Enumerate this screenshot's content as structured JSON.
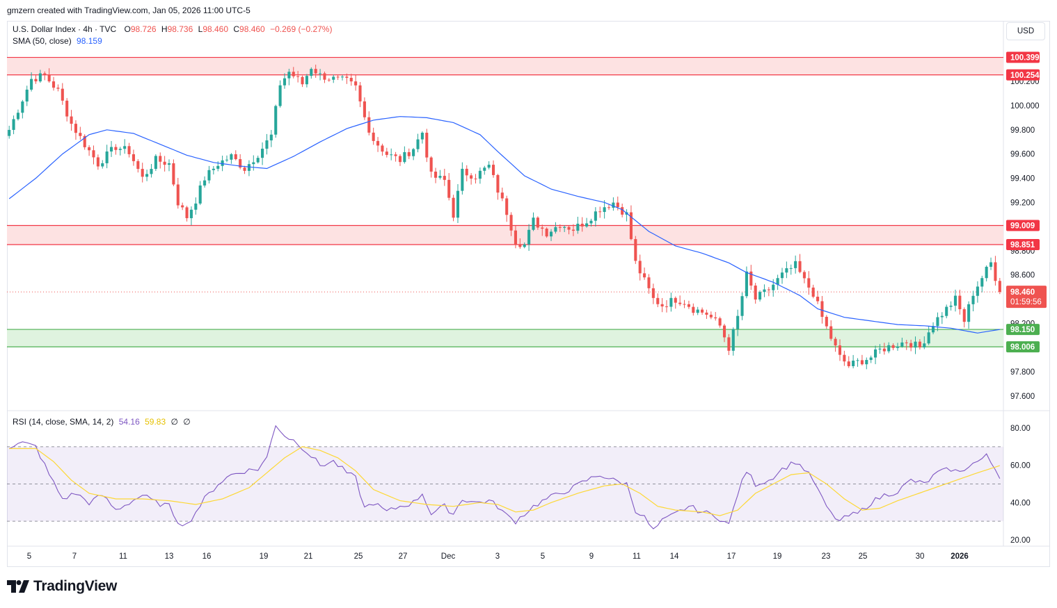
{
  "credit": "gmzern created with TradingView.com, Jan 05, 2026 11:00 UTC-5",
  "brand": {
    "name": "TradingView",
    "logo_icon": "tradingview-logo-icon"
  },
  "currency": "USD",
  "legend": {
    "symbol": "U.S. Dollar Index · 4h · TVC",
    "o_label": "O",
    "o": "98.726",
    "h_label": "H",
    "h": "98.736",
    "l_label": "L",
    "l": "98.460",
    "c_label": "C",
    "c": "98.460",
    "change": "−0.269 (−0.27%)",
    "sma_label": "SMA (50, close)",
    "sma_value": "98.159",
    "rsi_label": "RSI (14, close, SMA, 14, 2)",
    "rsi_value": "54.16",
    "rsi_ma_value": "59.83",
    "rsi_extra1": "∅",
    "rsi_extra2": "∅"
  },
  "colors": {
    "up": "#26a69a",
    "down": "#ef5350",
    "sma": "#2962ff",
    "rsi": "#7e57c2",
    "rsi_ma": "#fdd835",
    "resistance_fill": "#fde2e2",
    "resistance_line": "#f23645",
    "support_fill": "#dff3df",
    "support_line": "#4caf50"
  },
  "chart_data": [
    {
      "type": "candlestick",
      "title": "U.S. Dollar Index · 4h · TVC",
      "ylim": [
        97.5,
        100.45
      ],
      "y_ticks": [
        "100.200",
        "100.000",
        "99.800",
        "99.600",
        "99.400",
        "99.200",
        "98.800",
        "98.600",
        "98.200",
        "97.800",
        "97.600"
      ],
      "x_ticks": [
        "5",
        "7",
        "11",
        "13",
        "16",
        "19",
        "21",
        "25",
        "27",
        "Dec",
        "3",
        "5",
        "9",
        "11",
        "14",
        "17",
        "19",
        "23",
        "25",
        "30",
        "2026"
      ],
      "zones": [
        {
          "kind": "resistance",
          "top": 100.399,
          "bottom": 100.254,
          "top_label": "100.399",
          "bottom_label": "100.254"
        },
        {
          "kind": "resistance",
          "top": 99.009,
          "bottom": 98.851,
          "top_label": "99.009",
          "bottom_label": "98.851"
        },
        {
          "kind": "support",
          "top": 98.15,
          "bottom": 98.006,
          "top_label": "98.150",
          "bottom_label": "98.006"
        }
      ],
      "last_price": 98.46,
      "last_price_label": "98.460",
      "countdown": "01:59:56",
      "path_anchors": [
        [
          0,
          99.8
        ],
        [
          5,
          100.22
        ],
        [
          8,
          100.25
        ],
        [
          11,
          100.12
        ],
        [
          14,
          99.85
        ],
        [
          17,
          99.68
        ],
        [
          20,
          99.52
        ],
        [
          24,
          99.66
        ],
        [
          27,
          99.62
        ],
        [
          30,
          99.4
        ],
        [
          33,
          99.55
        ],
        [
          36,
          99.52
        ],
        [
          38,
          99.2
        ],
        [
          40,
          99.08
        ],
        [
          42,
          99.22
        ],
        [
          44,
          99.4
        ],
        [
          47,
          99.52
        ],
        [
          50,
          99.58
        ],
        [
          53,
          99.48
        ],
        [
          56,
          99.6
        ],
        [
          59,
          99.75
        ],
        [
          61,
          100.18
        ],
        [
          63,
          100.28
        ],
        [
          66,
          100.18
        ],
        [
          68,
          100.32
        ],
        [
          70,
          100.25
        ],
        [
          73,
          100.22
        ],
        [
          76,
          100.2
        ],
        [
          78,
          100.15
        ],
        [
          80,
          99.9
        ],
        [
          82,
          99.72
        ],
        [
          85,
          99.6
        ],
        [
          88,
          99.55
        ],
        [
          91,
          99.65
        ],
        [
          93,
          99.78
        ],
        [
          95,
          99.42
        ],
        [
          98,
          99.38
        ],
        [
          100,
          99.1
        ],
        [
          102,
          99.45
        ],
        [
          105,
          99.42
        ],
        [
          108,
          99.5
        ],
        [
          110,
          99.3
        ],
        [
          112,
          99.12
        ],
        [
          114,
          98.88
        ],
        [
          116,
          98.85
        ],
        [
          118,
          99.05
        ],
        [
          121,
          98.95
        ],
        [
          124,
          99.02
        ],
        [
          127,
          98.98
        ],
        [
          130,
          99.05
        ],
        [
          133,
          99.15
        ],
        [
          136,
          99.2
        ],
        [
          139,
          99.1
        ],
        [
          141,
          98.7
        ],
        [
          143,
          98.55
        ],
        [
          145,
          98.4
        ],
        [
          147,
          98.35
        ],
        [
          150,
          98.4
        ],
        [
          152,
          98.38
        ],
        [
          154,
          98.32
        ],
        [
          157,
          98.28
        ],
        [
          160,
          98.18
        ],
        [
          162,
          98.0
        ],
        [
          164,
          98.25
        ],
        [
          166,
          98.6
        ],
        [
          168,
          98.4
        ],
        [
          171,
          98.48
        ],
        [
          174,
          98.6
        ],
        [
          177,
          98.68
        ],
        [
          179,
          98.55
        ],
        [
          181,
          98.45
        ],
        [
          183,
          98.25
        ],
        [
          185,
          98.08
        ],
        [
          187,
          97.92
        ],
        [
          189,
          97.85
        ],
        [
          191,
          97.88
        ],
        [
          194,
          97.92
        ],
        [
          196,
          97.98
        ],
        [
          199,
          98.02
        ],
        [
          202,
          98.05
        ],
        [
          205,
          98.0
        ],
        [
          208,
          98.2
        ],
        [
          211,
          98.32
        ],
        [
          213,
          98.4
        ],
        [
          215,
          98.22
        ],
        [
          217,
          98.45
        ],
        [
          219,
          98.58
        ],
        [
          221,
          98.7
        ],
        [
          223,
          98.46
        ]
      ],
      "sma_anchors": [
        [
          0,
          99.23
        ],
        [
          6,
          99.4
        ],
        [
          12,
          99.6
        ],
        [
          18,
          99.76
        ],
        [
          22,
          99.8
        ],
        [
          28,
          99.77
        ],
        [
          34,
          99.68
        ],
        [
          40,
          99.59
        ],
        [
          46,
          99.53
        ],
        [
          52,
          99.5
        ],
        [
          58,
          99.48
        ],
        [
          64,
          99.58
        ],
        [
          70,
          99.7
        ],
        [
          76,
          99.81
        ],
        [
          82,
          99.88
        ],
        [
          88,
          99.91
        ],
        [
          94,
          99.9
        ],
        [
          100,
          99.86
        ],
        [
          106,
          99.76
        ],
        [
          110,
          99.62
        ],
        [
          116,
          99.42
        ],
        [
          122,
          99.31
        ],
        [
          128,
          99.25
        ],
        [
          134,
          99.2
        ],
        [
          138,
          99.14
        ],
        [
          144,
          98.96
        ],
        [
          150,
          98.84
        ],
        [
          156,
          98.78
        ],
        [
          162,
          98.7
        ],
        [
          166,
          98.62
        ],
        [
          172,
          98.54
        ],
        [
          178,
          98.43
        ],
        [
          182,
          98.32
        ],
        [
          188,
          98.25
        ],
        [
          194,
          98.22
        ],
        [
          200,
          98.19
        ],
        [
          206,
          98.18
        ],
        [
          212,
          98.16
        ],
        [
          218,
          98.12
        ],
        [
          223,
          98.15
        ]
      ]
    },
    {
      "type": "line",
      "title": "RSI (14, close, SMA, 14, 2)",
      "ylim": [
        15,
        88
      ],
      "y_ticks": [
        "80.00",
        "60.00",
        "40.00",
        "20.00"
      ],
      "band": [
        30,
        70
      ],
      "middle": 50,
      "series": [
        {
          "name": "RSI",
          "color": "#7e57c2",
          "anchors": [
            [
              0,
              70
            ],
            [
              3,
              72
            ],
            [
              6,
              70
            ],
            [
              9,
              55
            ],
            [
              12,
              42
            ],
            [
              15,
              45
            ],
            [
              18,
              40
            ],
            [
              21,
              44
            ],
            [
              24,
              36
            ],
            [
              27,
              40
            ],
            [
              30,
              44
            ],
            [
              33,
              40
            ],
            [
              36,
              38
            ],
            [
              38,
              30
            ],
            [
              40,
              28
            ],
            [
              42,
              35
            ],
            [
              44,
              42
            ],
            [
              47,
              50
            ],
            [
              50,
              55
            ],
            [
              53,
              57
            ],
            [
              56,
              58
            ],
            [
              58,
              64
            ],
            [
              60,
              82
            ],
            [
              62,
              76
            ],
            [
              65,
              72
            ],
            [
              68,
              65
            ],
            [
              70,
              60
            ],
            [
              73,
              62
            ],
            [
              76,
              56
            ],
            [
              78,
              53
            ],
            [
              80,
              37
            ],
            [
              82,
              40
            ],
            [
              85,
              35
            ],
            [
              88,
              38
            ],
            [
              91,
              40
            ],
            [
              93,
              45
            ],
            [
              95,
              34
            ],
            [
              98,
              38
            ],
            [
              100,
              34
            ],
            [
              102,
              42
            ],
            [
              105,
              40
            ],
            [
              108,
              41
            ],
            [
              110,
              38
            ],
            [
              112,
              33
            ],
            [
              114,
              30
            ],
            [
              116,
              34
            ],
            [
              118,
              38
            ],
            [
              121,
              42
            ],
            [
              124,
              45
            ],
            [
              127,
              48
            ],
            [
              130,
              52
            ],
            [
              133,
              55
            ],
            [
              136,
              52
            ],
            [
              139,
              50
            ],
            [
              141,
              36
            ],
            [
              143,
              32
            ],
            [
              145,
              25
            ],
            [
              147,
              30
            ],
            [
              150,
              34
            ],
            [
              153,
              38
            ],
            [
              156,
              35
            ],
            [
              159,
              33
            ],
            [
              162,
              28
            ],
            [
              164,
              45
            ],
            [
              166,
              57
            ],
            [
              168,
              50
            ],
            [
              171,
              52
            ],
            [
              174,
              58
            ],
            [
              177,
              62
            ],
            [
              179,
              58
            ],
            [
              181,
              52
            ],
            [
              183,
              42
            ],
            [
              185,
              34
            ],
            [
              187,
              30
            ],
            [
              189,
              33
            ],
            [
              191,
              34
            ],
            [
              194,
              40
            ],
            [
              197,
              44
            ],
            [
              200,
              46
            ],
            [
              203,
              52
            ],
            [
              206,
              50
            ],
            [
              209,
              56
            ],
            [
              212,
              58
            ],
            [
              214,
              56
            ],
            [
              216,
              60
            ],
            [
              218,
              62
            ],
            [
              220,
              65
            ],
            [
              222,
              58
            ],
            [
              223,
              54.16
            ]
          ]
        },
        {
          "name": "RSI-based MA",
          "color": "#fdd835",
          "anchors": [
            [
              0,
              69
            ],
            [
              6,
              69
            ],
            [
              10,
              62
            ],
            [
              14,
              52
            ],
            [
              18,
              45
            ],
            [
              24,
              42
            ],
            [
              30,
              42
            ],
            [
              36,
              41
            ],
            [
              42,
              39
            ],
            [
              48,
              42
            ],
            [
              54,
              48
            ],
            [
              58,
              56
            ],
            [
              62,
              64
            ],
            [
              66,
              70
            ],
            [
              70,
              68
            ],
            [
              74,
              64
            ],
            [
              78,
              57
            ],
            [
              82,
              47
            ],
            [
              88,
              41
            ],
            [
              94,
              39
            ],
            [
              100,
              38
            ],
            [
              106,
              40
            ],
            [
              110,
              39
            ],
            [
              114,
              35
            ],
            [
              118,
              36
            ],
            [
              122,
              40
            ],
            [
              128,
              45
            ],
            [
              134,
              49
            ],
            [
              138,
              50
            ],
            [
              142,
              45
            ],
            [
              146,
              38
            ],
            [
              150,
              36
            ],
            [
              156,
              35
            ],
            [
              160,
              33
            ],
            [
              164,
              36
            ],
            [
              168,
              45
            ],
            [
              172,
              50
            ],
            [
              176,
              55
            ],
            [
              180,
              56
            ],
            [
              184,
              50
            ],
            [
              188,
              42
            ],
            [
              192,
              36
            ],
            [
              196,
              37
            ],
            [
              200,
              41
            ],
            [
              206,
              46
            ],
            [
              212,
              51
            ],
            [
              218,
              56
            ],
            [
              223,
              59.83
            ]
          ]
        }
      ]
    }
  ]
}
